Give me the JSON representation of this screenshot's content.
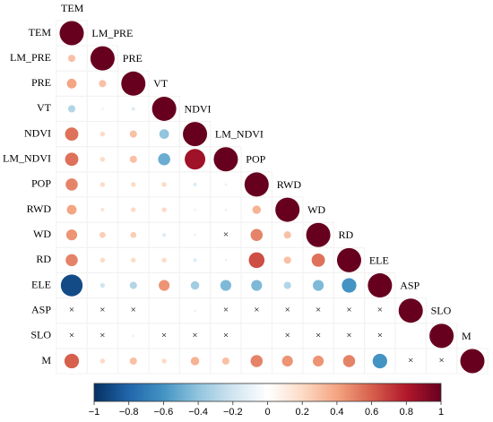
{
  "chart_data": {
    "type": "corrplot",
    "variables": [
      "TEM",
      "LM_PRE",
      "PRE",
      "VT",
      "NDVI",
      "LM_NDVI",
      "POP",
      "RWD",
      "WD",
      "RD",
      "ELE",
      "ASP",
      "SLO",
      "M"
    ],
    "matrix": [
      [
        1
      ],
      [
        0.3,
        1
      ],
      [
        0.4,
        0.3,
        1
      ],
      [
        -0.3,
        -0.1,
        -0.15,
        1
      ],
      [
        0.55,
        0.2,
        0.3,
        -0.4,
        1
      ],
      [
        0.55,
        0.2,
        0.3,
        -0.5,
        0.85,
        1
      ],
      [
        0.5,
        0.2,
        0.2,
        0.2,
        -0.15,
        -0.1,
        1
      ],
      [
        0.4,
        0.15,
        0.2,
        0.2,
        -0.1,
        -0.1,
        0.35,
        1
      ],
      [
        0.45,
        0.25,
        0.25,
        -0.15,
        -0.1,
        null,
        0.5,
        0.3,
        1
      ],
      [
        0.5,
        0.2,
        0.2,
        0.2,
        -0.15,
        -0.1,
        0.65,
        0.3,
        0.55,
        1
      ],
      [
        -0.9,
        -0.2,
        -0.3,
        0.45,
        -0.35,
        -0.45,
        -0.45,
        -0.3,
        -0.45,
        -0.6,
        1
      ],
      [
        null,
        null,
        null,
        -0.05,
        -0.1,
        null,
        null,
        null,
        null,
        null,
        null,
        1
      ],
      [
        null,
        null,
        -0.1,
        null,
        null,
        null,
        0.05,
        null,
        null,
        null,
        null,
        -0.05,
        1
      ],
      [
        0.6,
        0.2,
        0.3,
        0.2,
        0.35,
        0.3,
        0.5,
        0.45,
        0.45,
        0.5,
        -0.6,
        null,
        null,
        1
      ]
    ],
    "nonsignificant_label": "×",
    "colorscale": [
      "#053061",
      "#2166ac",
      "#4393c3",
      "#92c5de",
      "#d1e5f0",
      "#ffffff",
      "#fddbc7",
      "#f4a582",
      "#d6604d",
      "#b2182b",
      "#67001f"
    ],
    "clim": [
      -1,
      1
    ],
    "cticks": [
      {
        "value": -1,
        "label": "−1"
      },
      {
        "value": -0.8,
        "label": "−0.8"
      },
      {
        "value": -0.6,
        "label": "−0.6"
      },
      {
        "value": -0.4,
        "label": "−0.4"
      },
      {
        "value": -0.2,
        "label": "−0.2"
      },
      0,
      0.2,
      0.4,
      0.6,
      0.8,
      1
    ]
  }
}
